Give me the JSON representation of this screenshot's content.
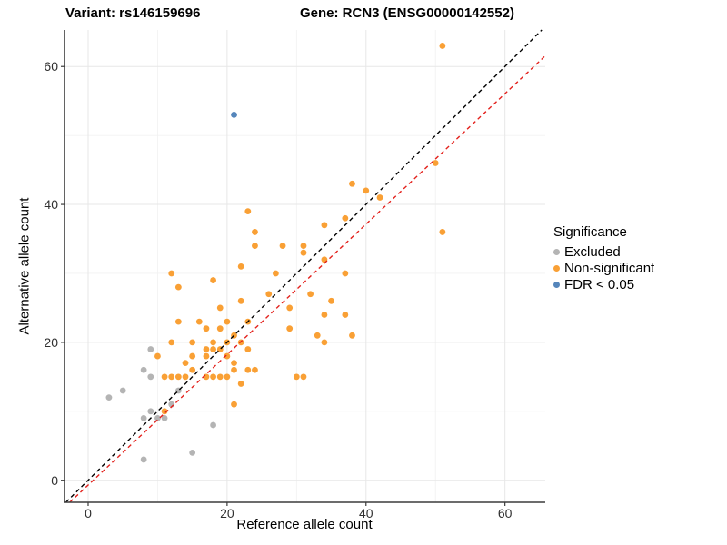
{
  "titles": {
    "left": "Variant: rs146159696",
    "right": "Gene: RCN3 (ENSG00000142552)"
  },
  "chart_data": {
    "type": "scatter",
    "xlabel": "Reference allele count",
    "ylabel": "Alternative allele count",
    "legend_title": "Significance",
    "legend_position": "right",
    "grid": true,
    "xlim": [
      -3.4,
      65.8
    ],
    "ylim": [
      -3.2,
      65.3
    ],
    "x_ticks": [
      0,
      20,
      40,
      60
    ],
    "y_ticks": [
      0,
      20,
      40,
      60
    ],
    "x_minor_ticks": [
      10,
      30,
      50
    ],
    "y_minor_ticks": [
      10,
      30,
      50
    ],
    "point_radius": 3.4,
    "colors": {
      "grid_major": "#E7E7E7",
      "grid_minor": "#F2F2F2",
      "axis_line": "#3C3C3C",
      "tick_text": "#303030"
    },
    "series": [
      {
        "name": "Excluded",
        "color": "#B4B4B4",
        "points": [
          [
            3,
            12
          ],
          [
            5,
            13
          ],
          [
            8,
            16
          ],
          [
            9,
            15
          ],
          [
            9,
            19
          ],
          [
            8,
            9
          ],
          [
            9,
            10
          ],
          [
            10,
            9
          ],
          [
            11,
            9
          ],
          [
            12,
            11
          ],
          [
            13,
            13
          ],
          [
            8,
            3
          ],
          [
            15,
            4
          ],
          [
            18,
            8
          ]
        ]
      },
      {
        "name": "Non-significant",
        "color": "#F9A035",
        "points": [
          [
            51,
            63
          ],
          [
            50,
            46
          ],
          [
            38,
            43
          ],
          [
            40,
            42
          ],
          [
            42,
            41
          ],
          [
            51,
            36
          ],
          [
            23,
            39
          ],
          [
            37,
            38
          ],
          [
            34,
            37
          ],
          [
            24,
            36
          ],
          [
            24,
            34
          ],
          [
            28,
            34
          ],
          [
            31,
            34
          ],
          [
            31,
            33
          ],
          [
            34,
            32
          ],
          [
            22,
            31
          ],
          [
            12,
            30
          ],
          [
            27,
            30
          ],
          [
            37,
            30
          ],
          [
            18,
            29
          ],
          [
            13,
            28
          ],
          [
            26,
            27
          ],
          [
            32,
            27
          ],
          [
            22,
            26
          ],
          [
            35,
            26
          ],
          [
            19,
            25
          ],
          [
            29,
            25
          ],
          [
            34,
            24
          ],
          [
            37,
            24
          ],
          [
            13,
            23
          ],
          [
            16,
            23
          ],
          [
            20,
            23
          ],
          [
            23,
            23
          ],
          [
            17,
            22
          ],
          [
            19,
            22
          ],
          [
            29,
            22
          ],
          [
            33,
            21
          ],
          [
            38,
            21
          ],
          [
            21,
            21
          ],
          [
            12,
            20
          ],
          [
            15,
            20
          ],
          [
            18,
            20
          ],
          [
            20,
            20
          ],
          [
            22,
            20
          ],
          [
            34,
            20
          ],
          [
            17,
            19
          ],
          [
            18,
            19
          ],
          [
            19,
            19
          ],
          [
            23,
            19
          ],
          [
            10,
            18
          ],
          [
            15,
            18
          ],
          [
            17,
            18
          ],
          [
            20,
            18
          ],
          [
            14,
            17
          ],
          [
            21,
            17
          ],
          [
            15,
            16
          ],
          [
            21,
            16
          ],
          [
            23,
            16
          ],
          [
            24,
            16
          ],
          [
            11,
            15
          ],
          [
            12,
            15
          ],
          [
            13,
            15
          ],
          [
            14,
            15
          ],
          [
            17,
            15
          ],
          [
            18,
            15
          ],
          [
            19,
            15
          ],
          [
            20,
            15
          ],
          [
            30,
            15
          ],
          [
            31,
            15
          ],
          [
            22,
            14
          ],
          [
            21,
            11
          ],
          [
            11,
            10
          ]
        ]
      },
      {
        "name": "FDR < 0.05",
        "color": "#5586BB",
        "points": [
          [
            21,
            53
          ]
        ]
      }
    ],
    "ref_lines": [
      {
        "name": "identity",
        "slope": 1,
        "intercept": 0,
        "color": "#000000",
        "dash": "4.5,3.5"
      },
      {
        "name": "fit",
        "slope": 0.946,
        "intercept": -0.7,
        "color": "#E3211C",
        "dash": "4.5,3.5"
      }
    ]
  }
}
